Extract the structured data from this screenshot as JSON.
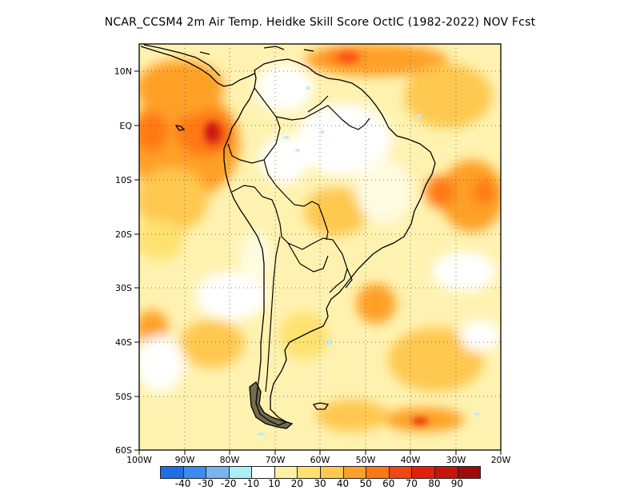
{
  "title": "NCAR_CCSM4  2m Air Temp. Heidke Skill Score OctIC (1982-2022) NOV Fcst",
  "y_ticks": [
    "10N",
    "EQ",
    "10S",
    "20S",
    "30S",
    "40S",
    "50S",
    "60S"
  ],
  "x_ticks": [
    "100W",
    "90W",
    "80W",
    "70W",
    "60W",
    "50W",
    "40W",
    "30W",
    "20W"
  ],
  "legend": {
    "colors": [
      "#1e6ee6",
      "#3c8cf0",
      "#78b4f0",
      "#aaeef8",
      "#ffffff",
      "#fff0a0",
      "#ffe170",
      "#ffc850",
      "#ffa028",
      "#ff7814",
      "#f04614",
      "#e61e0a",
      "#c8140a",
      "#a00a0a"
    ],
    "labels": [
      "-40",
      "-30",
      "-20",
      "-10",
      "10",
      "20",
      "30",
      "40",
      "50",
      "60",
      "70",
      "80",
      "90"
    ]
  }
}
